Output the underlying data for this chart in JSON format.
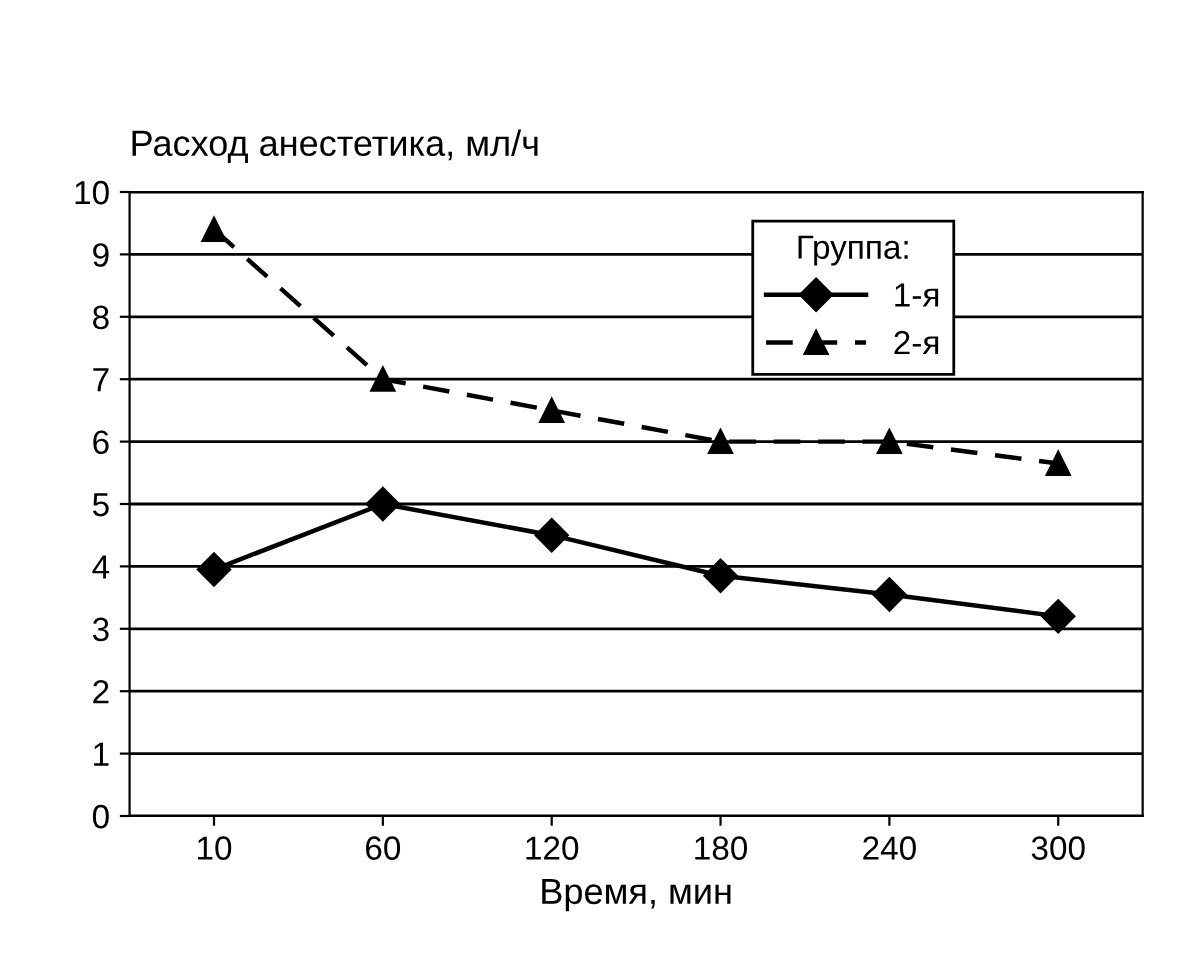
{
  "chart_data": {
    "type": "line",
    "ylabel": "Расход анестетика, мл/ч",
    "xlabel": "Время, мин",
    "categories": [
      "10",
      "60",
      "120",
      "180",
      "240",
      "300"
    ],
    "series": [
      {
        "name": "1-я",
        "color": "#000000",
        "marker": "diamond",
        "line_style": "solid",
        "values": [
          3.95,
          5.0,
          4.5,
          3.85,
          3.55,
          3.2
        ]
      },
      {
        "name": "2-я",
        "color": "#000000",
        "marker": "triangle",
        "line_style": "dashed",
        "values": [
          9.4,
          7.0,
          6.5,
          6.0,
          6.0,
          5.65
        ]
      }
    ],
    "legend_title": "Группа:",
    "legend": "top right",
    "ylim": [
      0,
      10
    ],
    "yticks": [
      0,
      1,
      2,
      3,
      4,
      5,
      6,
      7,
      8,
      9,
      10
    ],
    "grid": "y"
  }
}
